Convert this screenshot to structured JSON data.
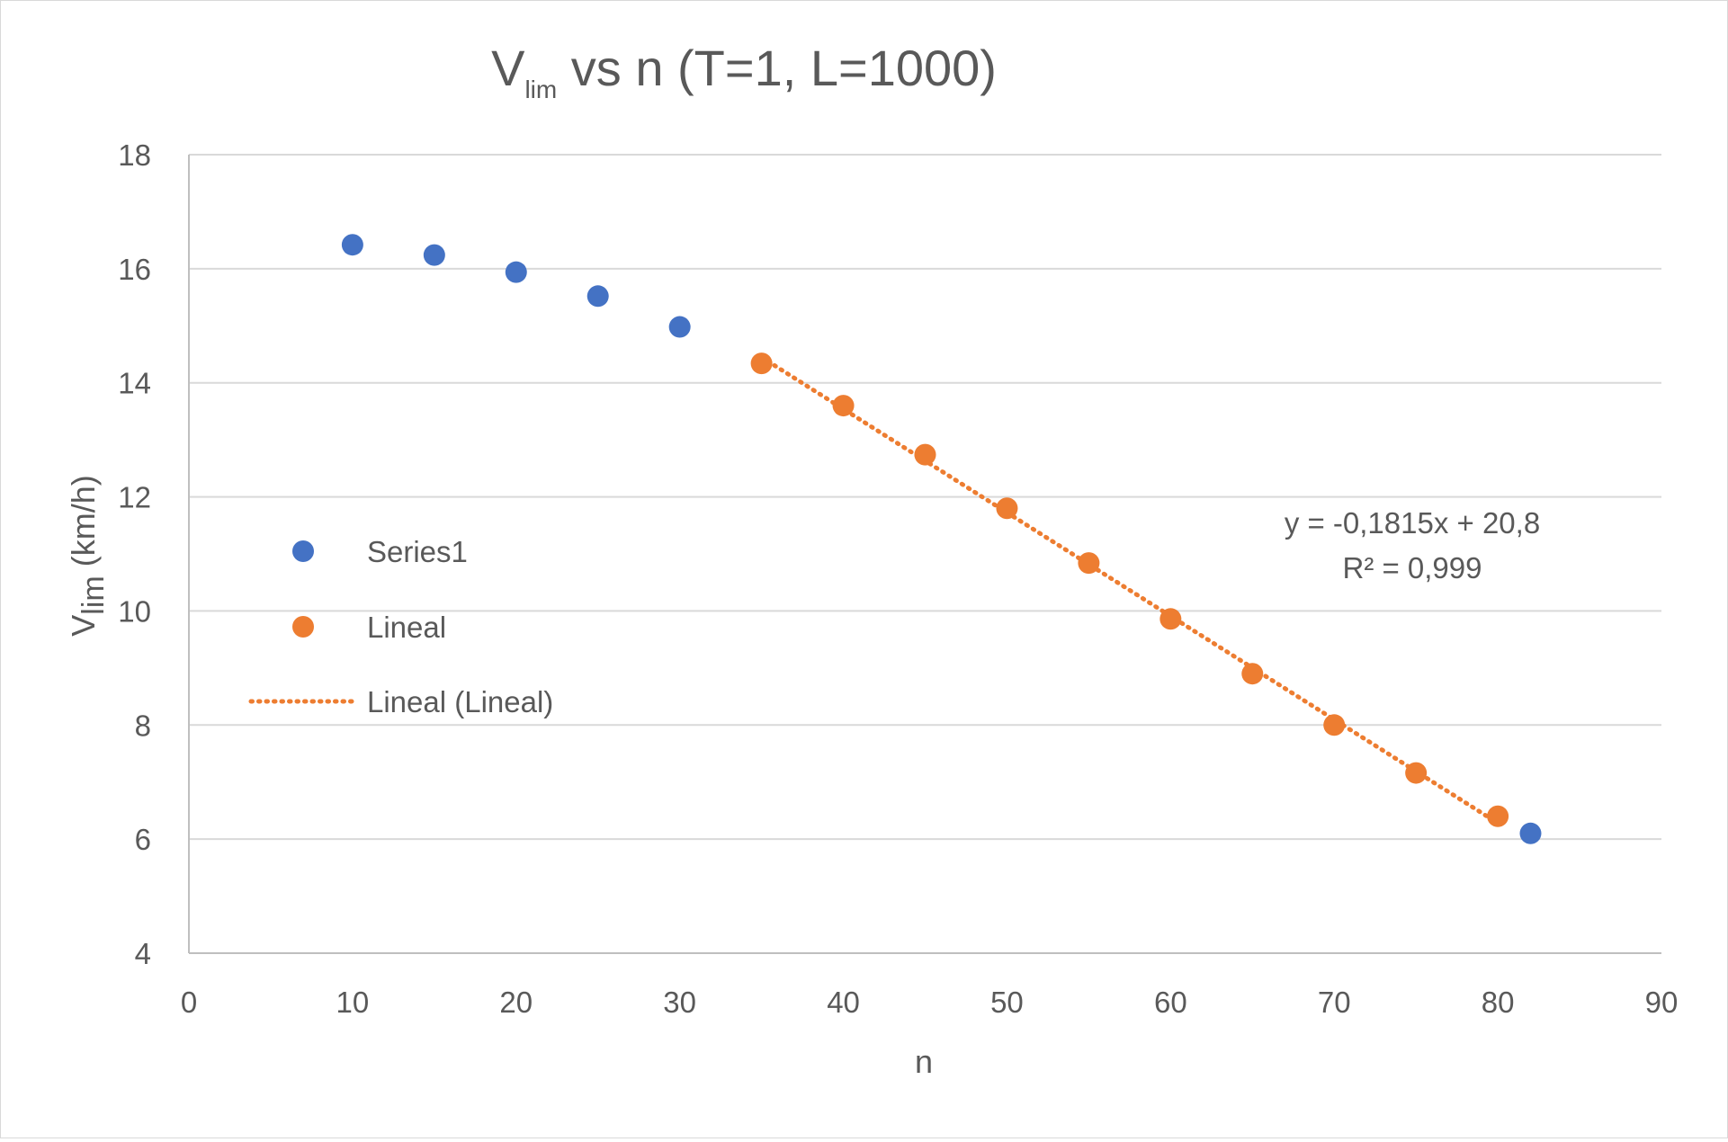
{
  "chart_data": {
    "type": "scatter",
    "title": {
      "main": "V",
      "subscript": "lim",
      "rest": " vs n (T=1, L=1000)"
    },
    "xlabel": "n",
    "ylabel": {
      "main": "V",
      "subscript": "lim",
      "rest": " (km/h)"
    },
    "xlim": [
      0,
      90
    ],
    "ylim": [
      4,
      18
    ],
    "xticks": [
      "0",
      "10",
      "20",
      "30",
      "40",
      "50",
      "60",
      "70",
      "80",
      "90"
    ],
    "yticks": [
      "4",
      "6",
      "8",
      "10",
      "12",
      "14",
      "16",
      "18"
    ],
    "grid": "horizontal",
    "legend_position": "left",
    "series": [
      {
        "name": "Series1",
        "color": "#4472C4",
        "marker": "circle",
        "points": [
          [
            10,
            16.42
          ],
          [
            15,
            16.24
          ],
          [
            20,
            15.94
          ],
          [
            25,
            15.52
          ],
          [
            30,
            14.98
          ],
          [
            82,
            6.1
          ]
        ]
      },
      {
        "name": "Lineal",
        "color": "#ED7D31",
        "marker": "circle",
        "points": [
          [
            35,
            14.34
          ],
          [
            40,
            13.6
          ],
          [
            45,
            12.74
          ],
          [
            50,
            11.8
          ],
          [
            55,
            10.84
          ],
          [
            60,
            9.86
          ],
          [
            65,
            8.9
          ],
          [
            70,
            8.0
          ],
          [
            75,
            7.16
          ],
          [
            80,
            6.4
          ]
        ]
      }
    ],
    "trendline": {
      "name": "Lineal (Lineal)",
      "series": "Lineal",
      "type": "linear",
      "style": "dotted",
      "color": "#ED7D31",
      "slope": -0.1815,
      "intercept": 20.8,
      "x_range": [
        35,
        80
      ],
      "equation": "y = -0,1815x + 20,8",
      "r_squared": "R² = 0,999"
    }
  }
}
